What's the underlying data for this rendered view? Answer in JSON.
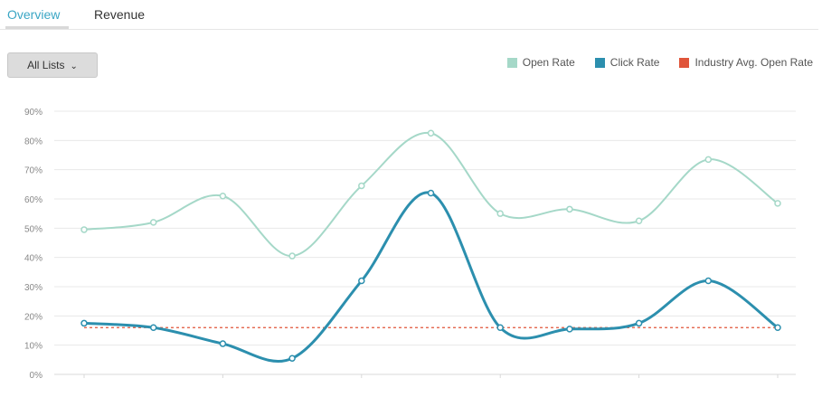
{
  "tabs": [
    {
      "label": "Overview",
      "active": true
    },
    {
      "label": "Revenue",
      "active": false
    }
  ],
  "filter": {
    "selected": "All Lists"
  },
  "colors": {
    "open_rate": "#a5d8c8",
    "click_rate": "#2c8fae",
    "industry_avg": "#e0553a",
    "grid": "#e8e8e8",
    "tab_active": "#3aa6c4"
  },
  "chart_data": {
    "type": "line",
    "x": [
      1,
      2,
      3,
      4,
      5,
      6,
      7,
      8,
      9,
      10,
      11
    ],
    "ylim": [
      0,
      90
    ],
    "yticks": [
      0,
      10,
      20,
      30,
      40,
      50,
      60,
      70,
      80,
      90
    ],
    "ytick_labels": [
      "0%",
      "10%",
      "20%",
      "30%",
      "40%",
      "50%",
      "60%",
      "70%",
      "80%",
      "90%"
    ],
    "grid": true,
    "legend_position": "top-right",
    "series": [
      {
        "name": "Open Rate",
        "values": [
          49.5,
          52,
          61,
          40.5,
          64.5,
          82.5,
          55,
          56.5,
          52.5,
          73.5,
          58.5
        ]
      },
      {
        "name": "Click Rate",
        "values": [
          17.5,
          16,
          10.5,
          5.5,
          32,
          62,
          16,
          15.5,
          17.5,
          32,
          16
        ]
      },
      {
        "name": "Industry Avg. Open Rate",
        "values": [
          16,
          16,
          16,
          16,
          16,
          16,
          16,
          16,
          16,
          16,
          16
        ],
        "style": "dashed"
      }
    ]
  }
}
